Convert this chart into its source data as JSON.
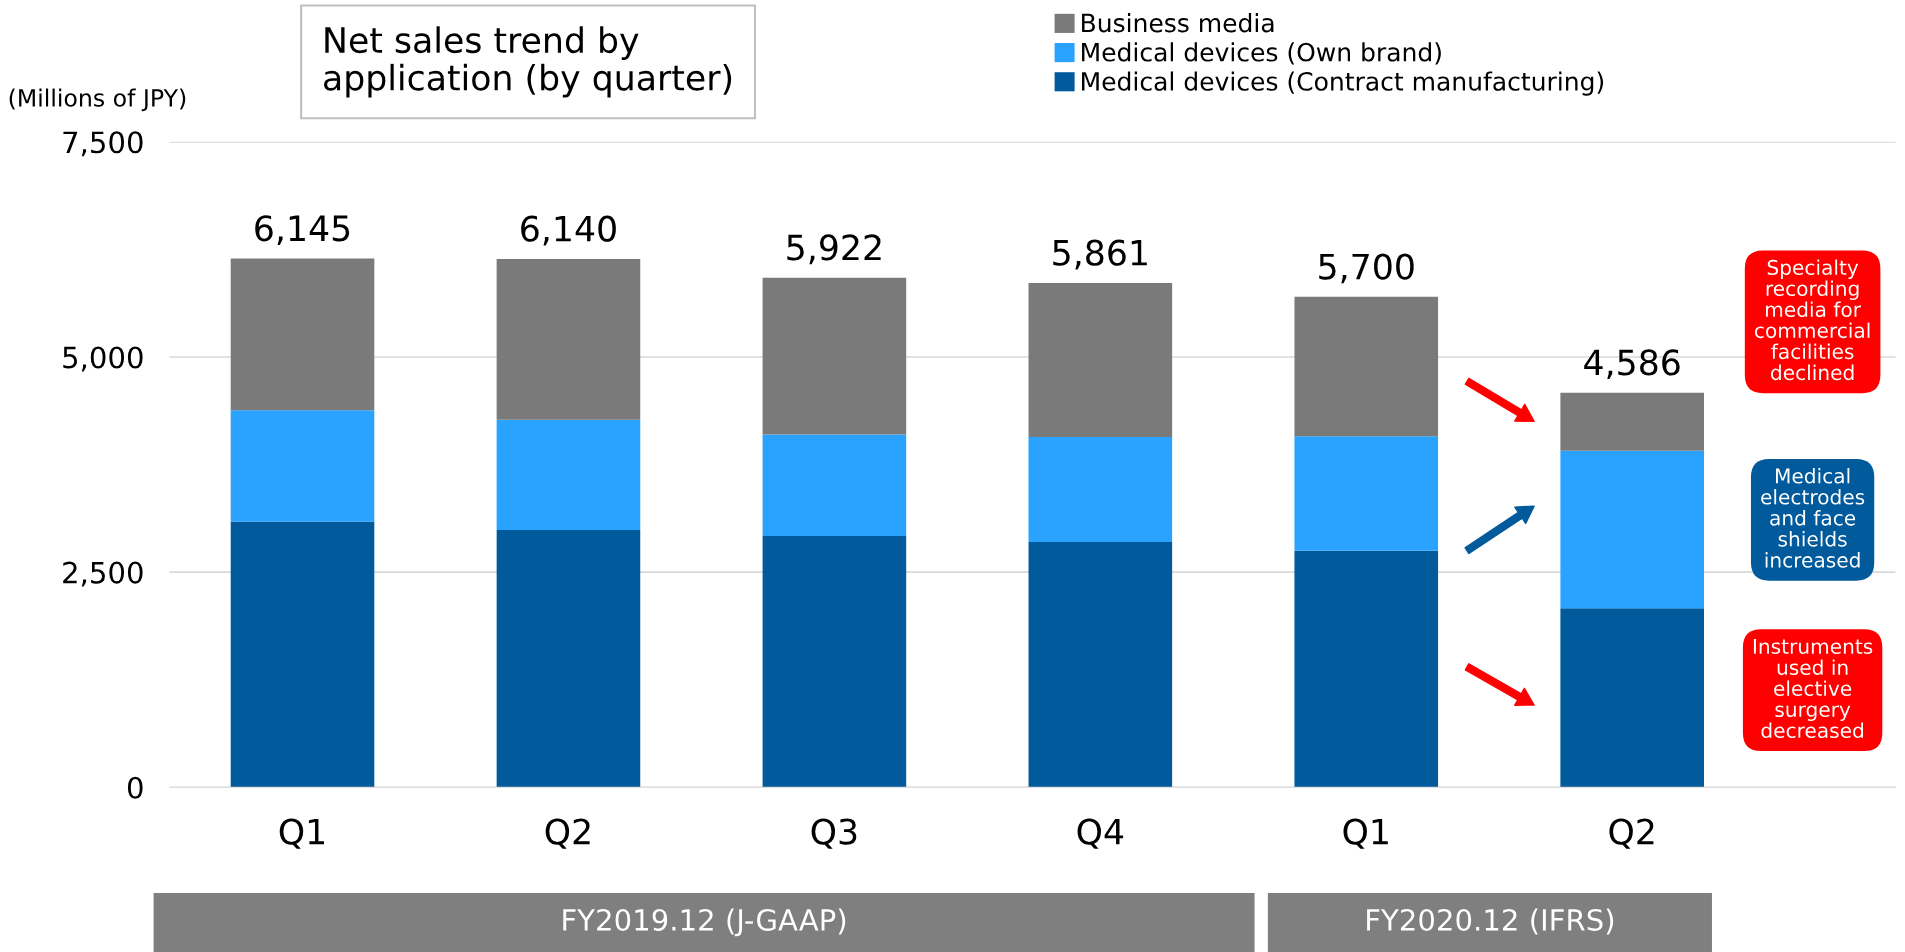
{
  "chart_data": {
    "type": "bar",
    "stacked": true,
    "title": "Net sales trend by\napplication (by quarter)",
    "ylabel": "(Millions of JPY)",
    "categories": [
      "Q1",
      "Q2",
      "Q3",
      "Q4",
      "Q1",
      "Q2"
    ],
    "series": [
      {
        "name": "Medical devices (Contract manufacturing)",
        "color": "#005a9c",
        "values": [
          3090,
          2990,
          2920,
          2850,
          2750,
          2080
        ]
      },
      {
        "name": "Medical devices (Own brand)",
        "color": "#29a3ff",
        "values": [
          1290,
          1280,
          1180,
          1220,
          1330,
          1830
        ]
      },
      {
        "name": "Business media",
        "color": "#7a7a7a",
        "values": [
          1765,
          1870,
          1822,
          1791,
          1620,
          676
        ]
      }
    ],
    "totals": [
      "6,145",
      "6,140",
      "5,922",
      "5,861",
      "5,700",
      "4,586"
    ],
    "ylim": [
      0,
      7500
    ],
    "yticks": [
      0,
      {
        "value": 2500,
        "label": "2,500"
      },
      {
        "value": 5000,
        "label": "5,000"
      },
      {
        "value": 7500,
        "label": "7,500"
      }
    ],
    "grid": "y",
    "legend": "top right",
    "annotations": [
      "FY2019.12 (J-GAAP)",
      "FY2020.12 (IFRS)",
      "Specialty\nrecording\nmedia for\ncommercial\nfacilities\ndeclined",
      "Medical\nelectrodes\nand face\nshields\nincreased",
      "Instruments\nused in\nelective\nsurgery\ndecreased"
    ]
  }
}
